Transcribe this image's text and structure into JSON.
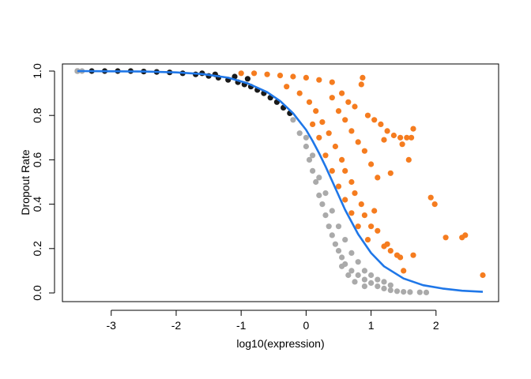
{
  "chart_data": {
    "type": "scatter",
    "title": "",
    "xlabel": "log10(expression)",
    "ylabel": "Dropout Rate",
    "xlim": [
      -3.6,
      2.8
    ],
    "ylim": [
      0.0,
      1.0
    ],
    "x_ticks": [
      -3,
      -2,
      -1,
      0,
      1,
      2
    ],
    "x_tick_labels": [
      "-3",
      "-2",
      "-1",
      "0",
      "1",
      "2"
    ],
    "y_ticks": [
      0.0,
      0.2,
      0.4,
      0.6,
      0.8,
      1.0
    ],
    "y_tick_labels": [
      "0.0",
      "0.2",
      "0.4",
      "0.6",
      "0.8",
      "1.0"
    ],
    "grid": false,
    "legend": null,
    "colors": {
      "low_expression_points": "#1a1a1a",
      "typical_points": "#aaaaaa",
      "high_dropout_points": "#f57c1f",
      "fit_curve": "#1f77e8"
    },
    "series": [
      {
        "kind": "points",
        "color": "#1a1a1a",
        "points": [
          [
            -3.52,
            1.0
          ],
          [
            -3.3,
            1.0
          ],
          [
            -3.1,
            1.0
          ],
          [
            -2.9,
            1.0
          ],
          [
            -2.7,
            1.0
          ],
          [
            -2.5,
            0.998
          ],
          [
            -2.3,
            0.996
          ],
          [
            -2.1,
            0.994
          ],
          [
            -1.9,
            0.99
          ],
          [
            -1.7,
            0.985
          ],
          [
            -1.5,
            0.978
          ],
          [
            -1.35,
            0.97
          ],
          [
            -1.2,
            0.96
          ],
          [
            -1.05,
            0.95
          ],
          [
            -0.95,
            0.94
          ],
          [
            -0.85,
            0.93
          ],
          [
            -0.75,
            0.915
          ],
          [
            -0.65,
            0.9
          ],
          [
            -0.55,
            0.88
          ],
          [
            -0.45,
            0.86
          ],
          [
            -0.35,
            0.835
          ],
          [
            -0.25,
            0.81
          ],
          [
            -1.6,
            0.99
          ],
          [
            -1.4,
            0.985
          ],
          [
            -1.1,
            0.975
          ],
          [
            -0.9,
            0.965
          ]
        ]
      },
      {
        "kind": "points",
        "color": "#aaaaaa",
        "points": [
          [
            -3.52,
            1.0
          ],
          [
            -3.45,
            1.0
          ],
          [
            -0.2,
            0.78
          ],
          [
            -0.1,
            0.72
          ],
          [
            0.0,
            0.66
          ],
          [
            0.05,
            0.6
          ],
          [
            0.1,
            0.55
          ],
          [
            0.15,
            0.5
          ],
          [
            0.2,
            0.44
          ],
          [
            0.25,
            0.4
          ],
          [
            0.3,
            0.35
          ],
          [
            0.35,
            0.3
          ],
          [
            0.4,
            0.26
          ],
          [
            0.45,
            0.22
          ],
          [
            0.5,
            0.19
          ],
          [
            0.55,
            0.16
          ],
          [
            0.6,
            0.13
          ],
          [
            0.7,
            0.1
          ],
          [
            0.8,
            0.08
          ],
          [
            0.9,
            0.06
          ],
          [
            1.0,
            0.045
          ],
          [
            1.1,
            0.03
          ],
          [
            1.2,
            0.02
          ],
          [
            1.3,
            0.012
          ],
          [
            1.4,
            0.008
          ],
          [
            1.5,
            0.005
          ],
          [
            1.6,
            0.004
          ],
          [
            1.75,
            0.003
          ],
          [
            1.85,
            0.002
          ],
          [
            0.0,
            0.7
          ],
          [
            0.1,
            0.62
          ],
          [
            0.2,
            0.52
          ],
          [
            0.3,
            0.45
          ],
          [
            0.4,
            0.37
          ],
          [
            0.5,
            0.3
          ],
          [
            0.6,
            0.24
          ],
          [
            0.7,
            0.18
          ],
          [
            0.8,
            0.14
          ],
          [
            0.9,
            0.1
          ],
          [
            1.0,
            0.08
          ],
          [
            1.1,
            0.06
          ],
          [
            1.2,
            0.05
          ],
          [
            1.3,
            0.035
          ],
          [
            0.9,
            0.03
          ],
          [
            0.75,
            0.05
          ],
          [
            0.65,
            0.08
          ],
          [
            0.55,
            0.12
          ]
        ]
      },
      {
        "kind": "points",
        "color": "#f57c1f",
        "points": [
          [
            -1.0,
            0.99
          ],
          [
            -0.8,
            0.99
          ],
          [
            -0.6,
            0.985
          ],
          [
            -0.4,
            0.98
          ],
          [
            -0.2,
            0.975
          ],
          [
            0.0,
            0.97
          ],
          [
            0.2,
            0.96
          ],
          [
            0.4,
            0.95
          ],
          [
            -0.3,
            0.93
          ],
          [
            -0.1,
            0.9
          ],
          [
            0.05,
            0.86
          ],
          [
            0.15,
            0.82
          ],
          [
            0.25,
            0.77
          ],
          [
            0.35,
            0.72
          ],
          [
            0.45,
            0.66
          ],
          [
            0.55,
            0.6
          ],
          [
            0.6,
            0.55
          ],
          [
            0.7,
            0.5
          ],
          [
            0.75,
            0.45
          ],
          [
            0.85,
            0.4
          ],
          [
            0.9,
            0.35
          ],
          [
            1.0,
            0.3
          ],
          [
            1.1,
            0.28
          ],
          [
            0.95,
            0.24
          ],
          [
            1.2,
            0.21
          ],
          [
            1.3,
            0.19
          ],
          [
            1.4,
            0.17
          ],
          [
            0.4,
            0.88
          ],
          [
            0.5,
            0.82
          ],
          [
            0.6,
            0.78
          ],
          [
            0.7,
            0.73
          ],
          [
            0.8,
            0.68
          ],
          [
            0.9,
            0.64
          ],
          [
            1.0,
            0.58
          ],
          [
            1.1,
            0.52
          ],
          [
            0.85,
            0.94
          ],
          [
            0.55,
            0.9
          ],
          [
            0.65,
            0.86
          ],
          [
            0.75,
            0.84
          ],
          [
            0.95,
            0.8
          ],
          [
            1.05,
            0.78
          ],
          [
            1.15,
            0.76
          ],
          [
            1.2,
            0.69
          ],
          [
            1.25,
            0.73
          ],
          [
            1.35,
            0.71
          ],
          [
            1.45,
            0.7
          ],
          [
            1.55,
            0.7
          ],
          [
            1.65,
            0.74
          ],
          [
            1.62,
            0.7
          ],
          [
            1.05,
            0.37
          ],
          [
            1.3,
            0.54
          ],
          [
            1.48,
            0.67
          ],
          [
            1.58,
            0.6
          ],
          [
            1.25,
            0.22
          ],
          [
            1.45,
            0.16
          ],
          [
            1.5,
            0.1
          ],
          [
            1.65,
            0.17
          ],
          [
            0.87,
            0.97
          ],
          [
            1.92,
            0.43
          ],
          [
            1.98,
            0.4
          ],
          [
            2.15,
            0.25
          ],
          [
            2.4,
            0.25
          ],
          [
            2.45,
            0.26
          ],
          [
            2.72,
            0.08
          ],
          [
            0.3,
            0.62
          ],
          [
            0.4,
            0.55
          ],
          [
            0.5,
            0.48
          ],
          [
            0.6,
            0.42
          ],
          [
            0.7,
            0.36
          ],
          [
            0.8,
            0.3
          ],
          [
            0.2,
            0.7
          ],
          [
            0.1,
            0.76
          ]
        ]
      },
      {
        "kind": "curve",
        "color": "#1f77e8",
        "x": [
          -3.52,
          -3.0,
          -2.5,
          -2.0,
          -1.6,
          -1.2,
          -0.9,
          -0.6,
          -0.4,
          -0.2,
          0.0,
          0.1,
          0.2,
          0.3,
          0.4,
          0.5,
          0.6,
          0.8,
          1.0,
          1.2,
          1.5,
          1.8,
          2.1,
          2.4,
          2.72
        ],
        "y": [
          1.0,
          0.999,
          0.998,
          0.994,
          0.987,
          0.97,
          0.945,
          0.905,
          0.865,
          0.81,
          0.735,
          0.685,
          0.63,
          0.57,
          0.505,
          0.44,
          0.375,
          0.265,
          0.18,
          0.12,
          0.065,
          0.035,
          0.02,
          0.01,
          0.005
        ]
      }
    ]
  }
}
